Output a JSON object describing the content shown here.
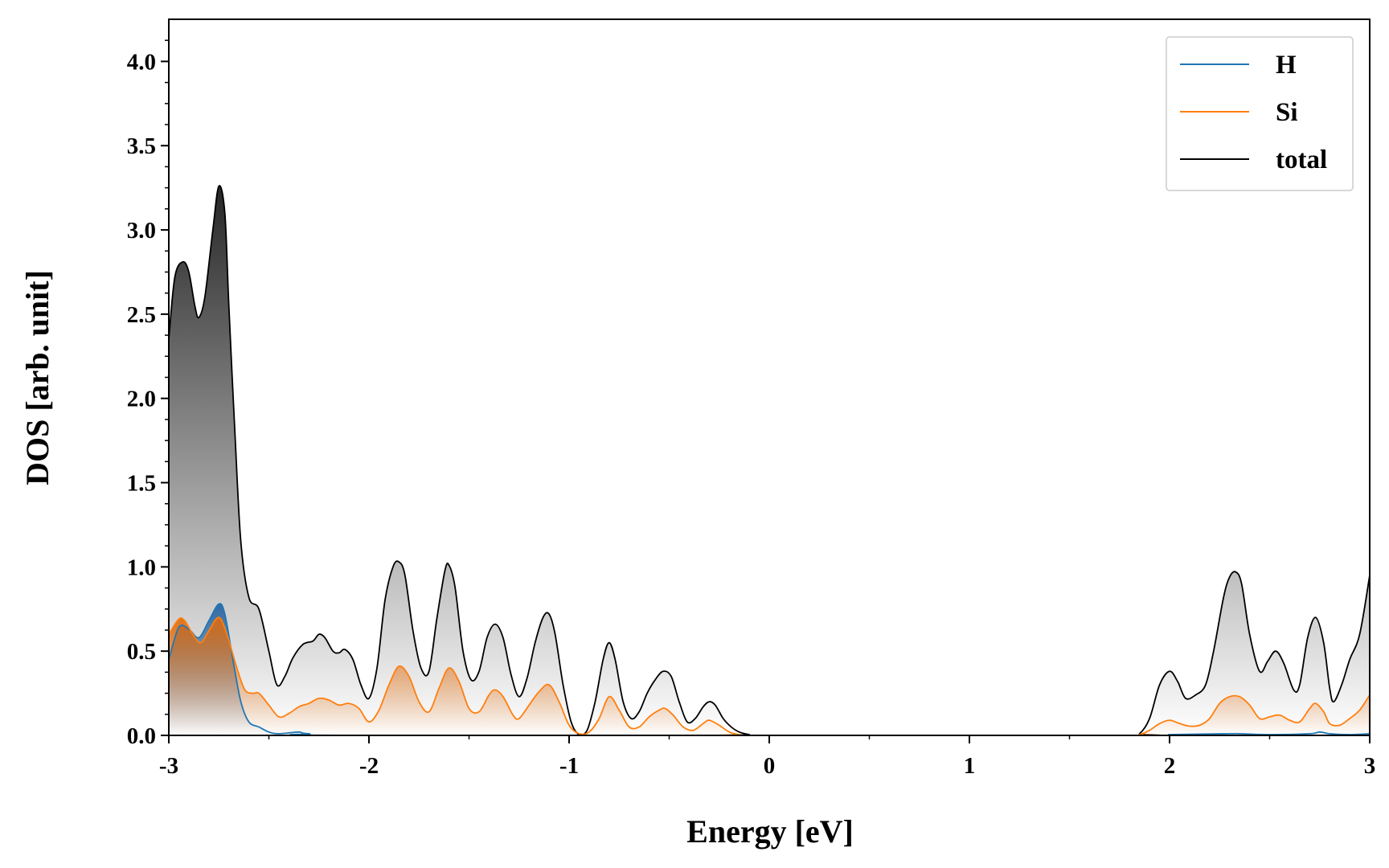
{
  "chart_data": {
    "type": "area",
    "xlabel": "Energy [eV]",
    "ylabel": "DOS [arb. unit]",
    "xlim": [
      -3,
      3
    ],
    "ylim": [
      0,
      4.25
    ],
    "x_ticks": [
      -3,
      -2,
      -1,
      0,
      1,
      2,
      3
    ],
    "x_tick_labels": [
      "-3",
      "-2",
      "-1",
      "0",
      "1",
      "2",
      "3"
    ],
    "y_ticks": [
      0,
      0.5,
      1,
      1.5,
      2,
      2.5,
      3,
      3.5,
      4
    ],
    "y_tick_labels": [
      "0.0",
      "0.5",
      "1.0",
      "1.5",
      "2.0",
      "2.5",
      "3.0",
      "3.5",
      "4.0"
    ],
    "grid": false,
    "legend_position": "top-right",
    "fill": "vertical gradient under each curve",
    "series": [
      {
        "name": "H",
        "color": "#1f77b4",
        "points": [
          [
            -3.0,
            0.45
          ],
          [
            -2.95,
            0.64
          ],
          [
            -2.9,
            0.63
          ],
          [
            -2.85,
            0.58
          ],
          [
            -2.8,
            0.68
          ],
          [
            -2.75,
            0.78
          ],
          [
            -2.72,
            0.72
          ],
          [
            -2.68,
            0.45
          ],
          [
            -2.64,
            0.2
          ],
          [
            -2.6,
            0.08
          ],
          [
            -2.55,
            0.05
          ],
          [
            -2.5,
            0.02
          ],
          [
            -2.45,
            0.01
          ],
          [
            -2.35,
            0.02
          ],
          [
            -2.3,
            0.01
          ],
          [
            -2.0,
            0.0
          ],
          [
            1.9,
            0.0
          ],
          [
            2.0,
            0.005
          ],
          [
            2.3,
            0.01
          ],
          [
            2.35,
            0.01
          ],
          [
            2.5,
            0.005
          ],
          [
            2.7,
            0.01
          ],
          [
            2.75,
            0.02
          ],
          [
            2.8,
            0.01
          ],
          [
            2.9,
            0.005
          ],
          [
            3.0,
            0.01
          ]
        ]
      },
      {
        "name": "Si",
        "color": "#ff7f0e",
        "points": [
          [
            -3.0,
            0.6
          ],
          [
            -2.95,
            0.69
          ],
          [
            -2.92,
            0.68
          ],
          [
            -2.88,
            0.6
          ],
          [
            -2.84,
            0.55
          ],
          [
            -2.8,
            0.62
          ],
          [
            -2.75,
            0.7
          ],
          [
            -2.71,
            0.6
          ],
          [
            -2.66,
            0.4
          ],
          [
            -2.62,
            0.27
          ],
          [
            -2.58,
            0.25
          ],
          [
            -2.55,
            0.25
          ],
          [
            -2.5,
            0.18
          ],
          [
            -2.45,
            0.11
          ],
          [
            -2.4,
            0.13
          ],
          [
            -2.35,
            0.17
          ],
          [
            -2.3,
            0.19
          ],
          [
            -2.25,
            0.22
          ],
          [
            -2.2,
            0.21
          ],
          [
            -2.15,
            0.18
          ],
          [
            -2.1,
            0.19
          ],
          [
            -2.05,
            0.16
          ],
          [
            -2.0,
            0.08
          ],
          [
            -1.95,
            0.15
          ],
          [
            -1.9,
            0.3
          ],
          [
            -1.85,
            0.41
          ],
          [
            -1.8,
            0.35
          ],
          [
            -1.75,
            0.2
          ],
          [
            -1.7,
            0.14
          ],
          [
            -1.65,
            0.28
          ],
          [
            -1.6,
            0.4
          ],
          [
            -1.55,
            0.32
          ],
          [
            -1.5,
            0.16
          ],
          [
            -1.45,
            0.14
          ],
          [
            -1.4,
            0.24
          ],
          [
            -1.37,
            0.27
          ],
          [
            -1.33,
            0.23
          ],
          [
            -1.28,
            0.12
          ],
          [
            -1.25,
            0.1
          ],
          [
            -1.2,
            0.18
          ],
          [
            -1.15,
            0.26
          ],
          [
            -1.1,
            0.3
          ],
          [
            -1.05,
            0.2
          ],
          [
            -1.0,
            0.06
          ],
          [
            -0.95,
            0.01
          ],
          [
            -0.9,
            0.02
          ],
          [
            -0.85,
            0.1
          ],
          [
            -0.8,
            0.23
          ],
          [
            -0.75,
            0.15
          ],
          [
            -0.7,
            0.05
          ],
          [
            -0.65,
            0.05
          ],
          [
            -0.6,
            0.11
          ],
          [
            -0.55,
            0.15
          ],
          [
            -0.52,
            0.16
          ],
          [
            -0.48,
            0.12
          ],
          [
            -0.43,
            0.05
          ],
          [
            -0.38,
            0.03
          ],
          [
            -0.33,
            0.07
          ],
          [
            -0.3,
            0.09
          ],
          [
            -0.25,
            0.06
          ],
          [
            -0.2,
            0.02
          ],
          [
            -0.15,
            0.005
          ],
          [
            -0.1,
            0.0
          ],
          [
            1.8,
            0.0
          ],
          [
            1.85,
            0.005
          ],
          [
            1.9,
            0.03
          ],
          [
            1.95,
            0.07
          ],
          [
            2.0,
            0.09
          ],
          [
            2.05,
            0.07
          ],
          [
            2.1,
            0.055
          ],
          [
            2.15,
            0.06
          ],
          [
            2.2,
            0.1
          ],
          [
            2.25,
            0.19
          ],
          [
            2.3,
            0.23
          ],
          [
            2.35,
            0.23
          ],
          [
            2.4,
            0.18
          ],
          [
            2.45,
            0.1
          ],
          [
            2.5,
            0.11
          ],
          [
            2.55,
            0.12
          ],
          [
            2.6,
            0.09
          ],
          [
            2.65,
            0.08
          ],
          [
            2.7,
            0.16
          ],
          [
            2.73,
            0.19
          ],
          [
            2.77,
            0.14
          ],
          [
            2.8,
            0.07
          ],
          [
            2.85,
            0.06
          ],
          [
            2.9,
            0.1
          ],
          [
            2.95,
            0.15
          ],
          [
            3.0,
            0.24
          ]
        ]
      },
      {
        "name": "total",
        "color": "#000000",
        "points": [
          [
            -3.0,
            2.35
          ],
          [
            -2.97,
            2.72
          ],
          [
            -2.93,
            2.81
          ],
          [
            -2.9,
            2.75
          ],
          [
            -2.87,
            2.55
          ],
          [
            -2.85,
            2.48
          ],
          [
            -2.82,
            2.6
          ],
          [
            -2.78,
            3.0
          ],
          [
            -2.75,
            3.26
          ],
          [
            -2.72,
            3.1
          ],
          [
            -2.7,
            2.55
          ],
          [
            -2.67,
            1.8
          ],
          [
            -2.64,
            1.15
          ],
          [
            -2.6,
            0.82
          ],
          [
            -2.55,
            0.75
          ],
          [
            -2.5,
            0.5
          ],
          [
            -2.46,
            0.3
          ],
          [
            -2.42,
            0.35
          ],
          [
            -2.38,
            0.46
          ],
          [
            -2.33,
            0.54
          ],
          [
            -2.28,
            0.56
          ],
          [
            -2.25,
            0.6
          ],
          [
            -2.22,
            0.58
          ],
          [
            -2.18,
            0.5
          ],
          [
            -2.15,
            0.49
          ],
          [
            -2.12,
            0.51
          ],
          [
            -2.08,
            0.45
          ],
          [
            -2.04,
            0.3
          ],
          [
            -2.0,
            0.22
          ],
          [
            -1.96,
            0.4
          ],
          [
            -1.92,
            0.8
          ],
          [
            -1.88,
            1.0
          ],
          [
            -1.85,
            1.03
          ],
          [
            -1.82,
            0.95
          ],
          [
            -1.78,
            0.62
          ],
          [
            -1.74,
            0.4
          ],
          [
            -1.7,
            0.38
          ],
          [
            -1.66,
            0.7
          ],
          [
            -1.62,
            0.98
          ],
          [
            -1.6,
            1.01
          ],
          [
            -1.57,
            0.88
          ],
          [
            -1.53,
            0.5
          ],
          [
            -1.49,
            0.33
          ],
          [
            -1.45,
            0.38
          ],
          [
            -1.41,
            0.58
          ],
          [
            -1.37,
            0.66
          ],
          [
            -1.33,
            0.58
          ],
          [
            -1.29,
            0.36
          ],
          [
            -1.25,
            0.23
          ],
          [
            -1.21,
            0.34
          ],
          [
            -1.17,
            0.55
          ],
          [
            -1.13,
            0.7
          ],
          [
            -1.1,
            0.72
          ],
          [
            -1.07,
            0.6
          ],
          [
            -1.03,
            0.3
          ],
          [
            -0.99,
            0.08
          ],
          [
            -0.95,
            0.005
          ],
          [
            -0.91,
            0.03
          ],
          [
            -0.87,
            0.2
          ],
          [
            -0.83,
            0.45
          ],
          [
            -0.8,
            0.55
          ],
          [
            -0.77,
            0.45
          ],
          [
            -0.73,
            0.2
          ],
          [
            -0.69,
            0.1
          ],
          [
            -0.65,
            0.14
          ],
          [
            -0.61,
            0.25
          ],
          [
            -0.57,
            0.33
          ],
          [
            -0.53,
            0.38
          ],
          [
            -0.49,
            0.35
          ],
          [
            -0.45,
            0.2
          ],
          [
            -0.41,
            0.08
          ],
          [
            -0.37,
            0.1
          ],
          [
            -0.33,
            0.17
          ],
          [
            -0.3,
            0.2
          ],
          [
            -0.27,
            0.18
          ],
          [
            -0.23,
            0.1
          ],
          [
            -0.19,
            0.05
          ],
          [
            -0.15,
            0.02
          ],
          [
            -0.1,
            0.005
          ],
          [
            -0.05,
            0.0
          ],
          [
            1.8,
            0.0
          ],
          [
            1.85,
            0.01
          ],
          [
            1.9,
            0.1
          ],
          [
            1.95,
            0.3
          ],
          [
            2.0,
            0.38
          ],
          [
            2.04,
            0.32
          ],
          [
            2.08,
            0.22
          ],
          [
            2.13,
            0.24
          ],
          [
            2.18,
            0.3
          ],
          [
            2.22,
            0.5
          ],
          [
            2.27,
            0.82
          ],
          [
            2.3,
            0.94
          ],
          [
            2.33,
            0.97
          ],
          [
            2.36,
            0.9
          ],
          [
            2.4,
            0.6
          ],
          [
            2.45,
            0.38
          ],
          [
            2.49,
            0.44
          ],
          [
            2.53,
            0.5
          ],
          [
            2.57,
            0.43
          ],
          [
            2.62,
            0.27
          ],
          [
            2.65,
            0.3
          ],
          [
            2.69,
            0.58
          ],
          [
            2.73,
            0.7
          ],
          [
            2.77,
            0.55
          ],
          [
            2.8,
            0.28
          ],
          [
            2.82,
            0.2
          ],
          [
            2.86,
            0.3
          ],
          [
            2.9,
            0.45
          ],
          [
            2.95,
            0.6
          ],
          [
            3.0,
            0.95
          ]
        ]
      }
    ]
  }
}
